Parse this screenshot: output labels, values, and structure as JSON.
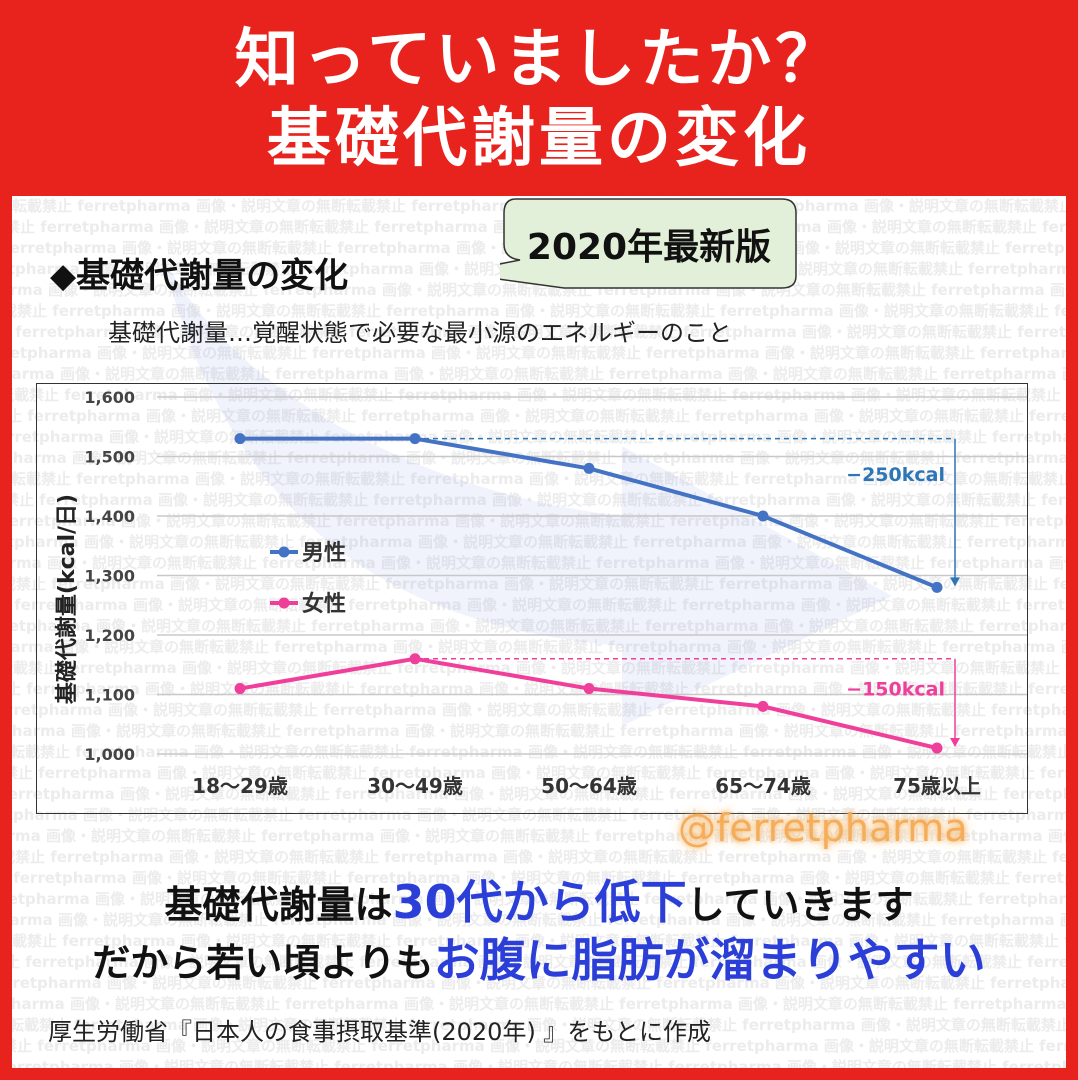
{
  "header": {
    "line1": "知っていましたか？",
    "line2": "基礎代謝量の変化"
  },
  "badge": "2020年最新版",
  "heading": "◆基礎代謝量の変化",
  "definition": "基礎代謝量…覚醒状態で必要な最小源のエネルギーのこと",
  "watermark_text": "転載禁止 ferretpharma 画像・説明文章の無断転載禁止 ferretpharma 画像・説明文章の無断",
  "handle": "@ferretpharma",
  "statement": {
    "line1_pre": "基礎代謝量は",
    "line1_em": "30代から低下",
    "line1_post": "していきます",
    "line2_pre": "だから若い頃よりも",
    "line2_em": "お腹に脂肪が溜まりやすい"
  },
  "source": "厚生労働省『日本人の食事摂取基準(2020年) 』をもとに作成",
  "colors": {
    "male": "#4472c4",
    "female": "#ef3f9a",
    "male_annot": "#2e75b6",
    "accent": "#2b3fd8",
    "frame": "#e8231e"
  },
  "chart_data": {
    "type": "line",
    "categories": [
      "18～29歳",
      "30～49歳",
      "50～64歳",
      "65～74歳",
      "75歳以上"
    ],
    "series": [
      {
        "name": "男性",
        "values": [
          1530,
          1530,
          1480,
          1400,
          1280
        ]
      },
      {
        "name": "女性",
        "values": [
          1110,
          1160,
          1110,
          1080,
          1010
        ]
      }
    ],
    "ylabel": "基礎代謝量(kcal/日)",
    "ylim": [
      1000,
      1600
    ],
    "yticks": [
      1000,
      1100,
      1200,
      1300,
      1400,
      1500,
      1600
    ],
    "ytick_labels": [
      "1,000",
      "1,100",
      "1,200",
      "1,300",
      "1,400",
      "1,500",
      "1,600"
    ],
    "grid": true,
    "legend_position": "left",
    "annotations": [
      {
        "series": "男性",
        "text": "−250kcal",
        "from": 1530,
        "to": 1280
      },
      {
        "series": "女性",
        "text": "−150kcal",
        "from": 1160,
        "to": 1010
      }
    ]
  }
}
